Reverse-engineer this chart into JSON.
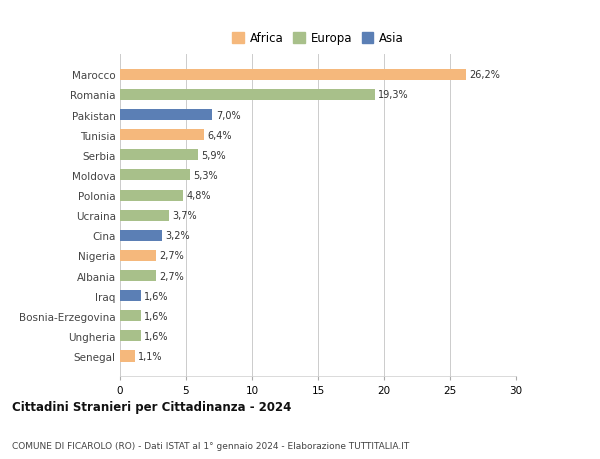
{
  "categories": [
    "Marocco",
    "Romania",
    "Pakistan",
    "Tunisia",
    "Serbia",
    "Moldova",
    "Polonia",
    "Ucraina",
    "Cina",
    "Nigeria",
    "Albania",
    "Iraq",
    "Bosnia-Erzegovina",
    "Ungheria",
    "Senegal"
  ],
  "values": [
    26.2,
    19.3,
    7.0,
    6.4,
    5.9,
    5.3,
    4.8,
    3.7,
    3.2,
    2.7,
    2.7,
    1.6,
    1.6,
    1.6,
    1.1
  ],
  "labels": [
    "26,2%",
    "19,3%",
    "7,0%",
    "6,4%",
    "5,9%",
    "5,3%",
    "4,8%",
    "3,7%",
    "3,2%",
    "2,7%",
    "2,7%",
    "1,6%",
    "1,6%",
    "1,6%",
    "1,1%"
  ],
  "continent": [
    "Africa",
    "Europa",
    "Asia",
    "Africa",
    "Europa",
    "Europa",
    "Europa",
    "Europa",
    "Asia",
    "Africa",
    "Europa",
    "Asia",
    "Europa",
    "Europa",
    "Africa"
  ],
  "colors": {
    "Africa": "#F5B87C",
    "Europa": "#A8C08A",
    "Asia": "#5B7FB5"
  },
  "legend_labels": [
    "Africa",
    "Europa",
    "Asia"
  ],
  "legend_colors": [
    "#F5B87C",
    "#A8C08A",
    "#5B7FB5"
  ],
  "xlim": [
    0,
    30
  ],
  "xticks": [
    0,
    5,
    10,
    15,
    20,
    25,
    30
  ],
  "title": "Cittadini Stranieri per Cittadinanza - 2024",
  "subtitle": "COMUNE DI FICAROLO (RO) - Dati ISTAT al 1° gennaio 2024 - Elaborazione TUTTITALIA.IT",
  "bg_color": "#ffffff",
  "grid_color": "#cccccc",
  "bar_height": 0.55
}
